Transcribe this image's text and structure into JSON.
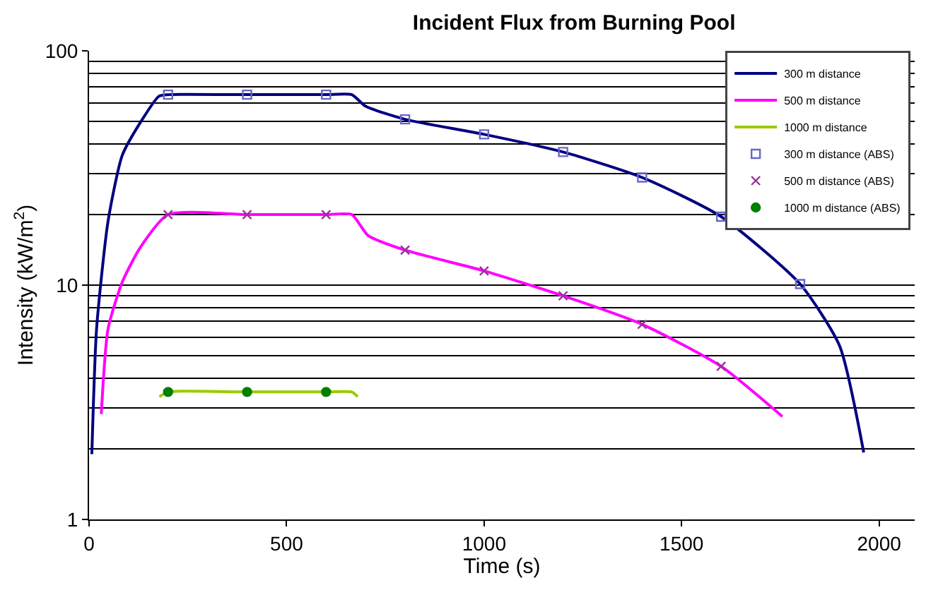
{
  "chart_data": {
    "type": "line",
    "title": "Incident Flux from Burning Pool",
    "xlabel": "Time (s)",
    "ylabel": "Intensity (kW/m$^{2}$)",
    "log": "y",
    "xlim": [
      0,
      2090
    ],
    "xticks": [
      0,
      500,
      1000,
      1500,
      2000
    ],
    "ylim": [
      1,
      100
    ],
    "yticks": [
      1,
      10,
      100
    ],
    "grid": "y",
    "legend": "top right",
    "series": [
      {
        "name": "300 m distance",
        "color": "#000080",
        "marker": "none",
        "x": [
          7,
          19,
          48,
          84,
          130,
          177,
          200,
          400,
          600,
          665,
          700,
          800,
          1000,
          1200,
          1400,
          1600,
          1800,
          1900,
          1961
        ],
        "values": [
          1.9,
          6.5,
          18.7,
          35.8,
          49.5,
          64,
          65,
          65,
          65,
          65,
          58,
          51,
          44,
          37,
          28.8,
          19.6,
          10.1,
          5.5,
          1.93
        ]
      },
      {
        "name": "500 m distance",
        "color": "#ff00ff",
        "marker": "none",
        "x": [
          31,
          48,
          84,
          130,
          200,
          400,
          600,
          665,
          706,
          800,
          1000,
          1200,
          1400,
          1600,
          1755
        ],
        "values": [
          2.82,
          6.5,
          10.3,
          14.5,
          20,
          20,
          20,
          20,
          16.3,
          14.1,
          11.5,
          9.0,
          6.8,
          4.5,
          2.75
        ]
      },
      {
        "name": "1000 m distance",
        "color": "#99cc00",
        "marker": "none",
        "x": [
          178,
          200,
          400,
          600,
          665,
          680
        ],
        "values": [
          3.34,
          3.5,
          3.5,
          3.5,
          3.5,
          3.34
        ]
      },
      {
        "name": "300 m distance (ABS)",
        "type": "scatter",
        "color": "#6666cc",
        "marker": "square",
        "x": [
          200,
          400,
          600,
          800,
          1000,
          1200,
          1400,
          1600,
          1800
        ],
        "values": [
          65,
          65,
          65,
          51,
          44,
          37,
          28.8,
          19.6,
          10.1
        ]
      },
      {
        "name": "500 m distance (ABS)",
        "type": "scatter",
        "color": "#993399",
        "marker": "cross",
        "x": [
          200,
          400,
          600,
          800,
          1000,
          1200,
          1400,
          1600
        ],
        "values": [
          20,
          20,
          20,
          14.1,
          11.5,
          9.0,
          6.8,
          4.5
        ]
      },
      {
        "name": "1000 m distance (ABS)",
        "type": "scatter",
        "color": "#008000",
        "marker": "circle",
        "x": [
          200,
          400,
          600
        ],
        "values": [
          3.5,
          3.5,
          3.5
        ]
      }
    ]
  }
}
